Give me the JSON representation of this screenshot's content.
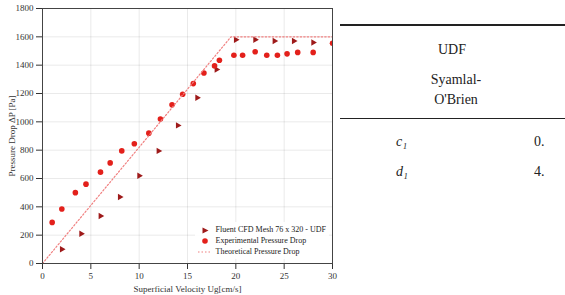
{
  "chart_data": {
    "type": "scatter",
    "x_label": "Superficial Velocity Ug[cm/s]",
    "y_label": "Pressure Drop ΔP [Pa]",
    "xlim": [
      0,
      30
    ],
    "xticks": [
      0,
      5,
      10,
      15,
      20,
      25,
      30
    ],
    "ylim": [
      0,
      1800
    ],
    "yticks": [
      0,
      200,
      400,
      600,
      800,
      1000,
      1200,
      1400,
      1600,
      1800
    ],
    "grid": true,
    "legend": "lower right",
    "series": [
      {
        "name": "Fluent CFD Mesh 76 x 320 - UDF",
        "type": "scatter",
        "marker": "triangle-right",
        "color": "#9e1a1a",
        "x": [
          2,
          4,
          6,
          8,
          10,
          12,
          14,
          16,
          18,
          20,
          22,
          24,
          26,
          28
        ],
        "values": [
          100,
          210,
          335,
          470,
          620,
          795,
          975,
          1170,
          1370,
          1580,
          1580,
          1570,
          1570,
          1560
        ]
      },
      {
        "name": "Experimental Pressure Drop",
        "type": "scatter",
        "marker": "circle",
        "color": "#e3201b",
        "x": [
          1,
          2,
          3.4,
          4.5,
          6,
          7,
          8.2,
          9.5,
          11,
          12.2,
          13.4,
          14.5,
          15.6,
          16.7,
          17.8,
          18.3,
          19.8,
          20.7,
          22,
          23.2,
          24.3,
          25.3,
          26.4,
          28,
          30
        ],
        "values": [
          290,
          385,
          500,
          560,
          645,
          710,
          795,
          845,
          920,
          1020,
          1120,
          1195,
          1270,
          1345,
          1395,
          1435,
          1470,
          1470,
          1495,
          1470,
          1470,
          1480,
          1490,
          1490,
          1555
        ]
      },
      {
        "name": "Theoretical Pressure Drop",
        "type": "line",
        "line_style": "dotted",
        "color": "#f08080",
        "x": [
          0,
          19.5,
          30
        ],
        "values": [
          0,
          1600,
          1600
        ]
      }
    ]
  },
  "table": {
    "header": [
      "UDF",
      "Syamlal-O'Brien"
    ],
    "rows": [
      [
        "c₁",
        "0."
      ],
      [
        "d₁",
        "4."
      ]
    ]
  }
}
